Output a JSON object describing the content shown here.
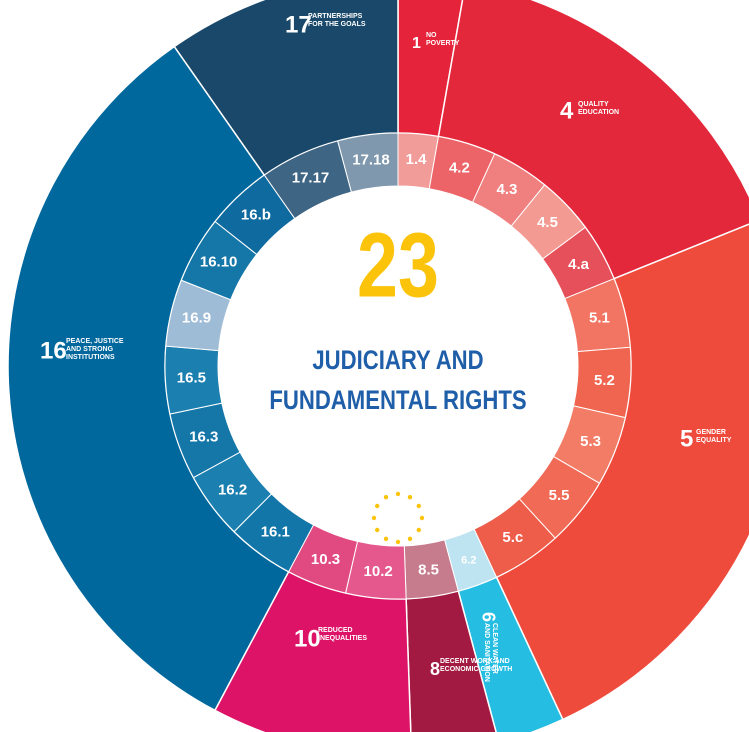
{
  "center": {
    "number": "23",
    "title_lines": [
      "JUDICIARY AND",
      "FUNDAMENTAL RIGHTS"
    ]
  },
  "goals": [
    {
      "number": "1",
      "name_lines": [
        "NO",
        "POVERTY"
      ]
    },
    {
      "number": "4",
      "name_lines": [
        "QUALITY",
        "EDUCATION"
      ]
    },
    {
      "number": "5",
      "name_lines": [
        "GENDER",
        "EQUALITY"
      ]
    },
    {
      "number": "6",
      "name_lines": [
        "CLEAN WATER",
        "AND SANITATION"
      ]
    },
    {
      "number": "8",
      "name_lines": [
        "DECENT WORK AND",
        "ECONOMIC GROWTH"
      ]
    },
    {
      "number": "10",
      "name_lines": [
        "REDUCED",
        "INEQUALITIES"
      ]
    },
    {
      "number": "16",
      "name_lines": [
        "PEACE, JUSTICE",
        "AND STRONG",
        "INSTITUTIONS"
      ]
    },
    {
      "number": "17",
      "name_lines": [
        "PARTNERSHIPS",
        "FOR THE GOALS"
      ]
    }
  ],
  "targets": [
    "1.4",
    "4.2",
    "4.3",
    "4.5",
    "4.a",
    "5.1",
    "5.2",
    "5.3",
    "5.5",
    "5.c",
    "6.2",
    "8.5",
    "10.2",
    "10.3",
    "16.1",
    "16.2",
    "16.3",
    "16.5",
    "16.9",
    "16.10",
    "16.b",
    "17.17",
    "17.18"
  ]
}
